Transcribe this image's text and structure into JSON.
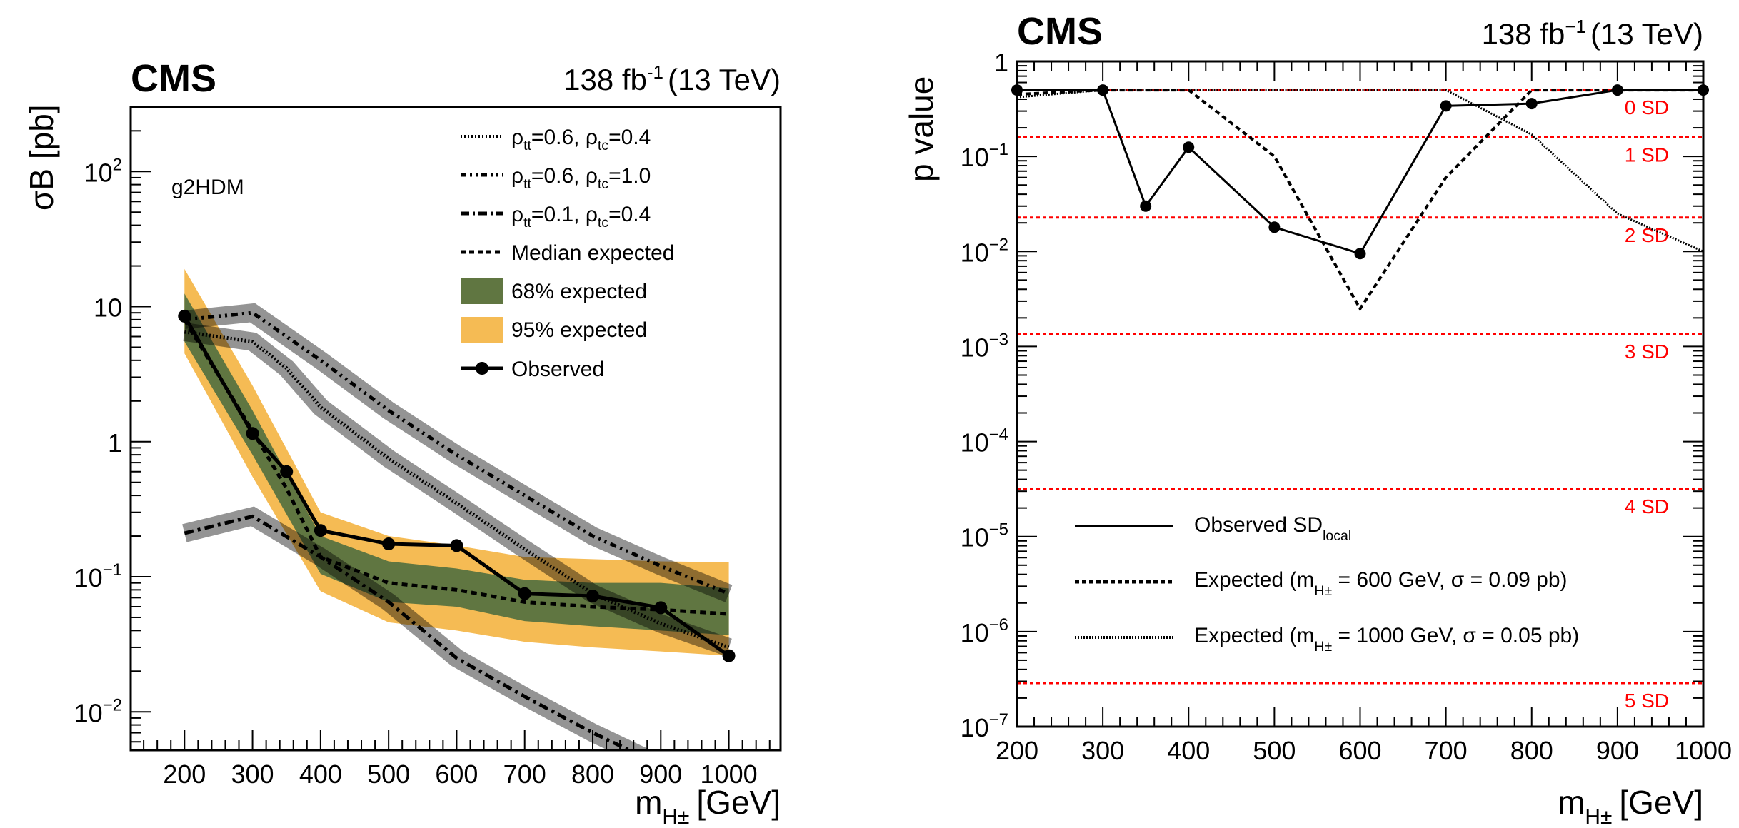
{
  "chart_data": [
    {
      "type": "line",
      "panel": "left",
      "header": {
        "experiment": "CMS",
        "lumi": "138 fb",
        "lumi_exp": "-1",
        "energy": "(13 TeV)"
      },
      "annotation": "g2HDM",
      "xlabel": "m",
      "xlabel_sub": "H±",
      "xlabel_unit": "[GeV]",
      "ylabel": "σB [pb]",
      "yscale": "log",
      "xlim": [
        121,
        1076
      ],
      "ylim": [
        0.0052,
        300
      ],
      "xticks": [
        200,
        300,
        400,
        500,
        600,
        700,
        800,
        900,
        1000
      ],
      "yticks": [
        {
          "value": 100,
          "label": "10",
          "exp": "2"
        },
        {
          "value": 10,
          "label": "10",
          "exp": ""
        },
        {
          "value": 1,
          "label": "1",
          "exp": ""
        },
        {
          "value": 0.1,
          "label": "10",
          "exp": "−1"
        },
        {
          "value": 0.01,
          "label": "10",
          "exp": "−2"
        }
      ],
      "bands": [
        {
          "name": "95% expected",
          "color": "#f5bb54",
          "x": [
            200,
            300,
            400,
            500,
            600,
            700,
            800,
            900,
            1000
          ],
          "low": [
            4.5,
            0.55,
            0.078,
            0.046,
            0.04,
            0.033,
            0.03,
            0.028,
            0.026
          ],
          "high": [
            19,
            2.6,
            0.3,
            0.2,
            0.17,
            0.14,
            0.135,
            0.13,
            0.128
          ]
        },
        {
          "name": "68% expected",
          "color": "#607641",
          "x": [
            200,
            300,
            400,
            500,
            600,
            700,
            800,
            900,
            1000
          ],
          "low": [
            5.5,
            0.8,
            0.105,
            0.065,
            0.06,
            0.047,
            0.043,
            0.04,
            0.037
          ],
          "high": [
            12.5,
            1.7,
            0.2,
            0.13,
            0.115,
            0.095,
            0.09,
            0.09,
            0.082
          ]
        }
      ],
      "series": [
        {
          "name": "ρtt=0.6, ρtc=0.4",
          "legend_main": "ρ",
          "legend_sub1": "tt",
          "legend_mid": "=0.6, ρ",
          "legend_sub2": "tc",
          "legend_end": "=0.4",
          "style": "dotted",
          "grey_band": true,
          "x": [
            200,
            300,
            350,
            400,
            500,
            600,
            700,
            800,
            900,
            1000
          ],
          "y": [
            6.5,
            5.5,
            3.5,
            1.8,
            0.75,
            0.35,
            0.16,
            0.075,
            0.045,
            0.03
          ]
        },
        {
          "name": "ρtt=0.6, ρtc=1.0",
          "legend_main": "ρ",
          "legend_sub1": "tt",
          "legend_mid": "=0.6, ρ",
          "legend_sub2": "tc",
          "legend_end": "=1.0",
          "style": "dashdotdot",
          "grey_band": true,
          "x": [
            200,
            300,
            400,
            500,
            600,
            700,
            800,
            900,
            1000
          ],
          "y": [
            8.0,
            9.0,
            4.0,
            1.7,
            0.8,
            0.4,
            0.2,
            0.12,
            0.075
          ]
        },
        {
          "name": "ρtt=0.1, ρtc=0.4",
          "legend_main": "ρ",
          "legend_sub1": "tt",
          "legend_mid": "=0.1, ρ",
          "legend_sub2": "tc",
          "legend_end": "=0.4",
          "style": "dashdot",
          "grey_band": true,
          "x": [
            200,
            300,
            400,
            500,
            600,
            700,
            800,
            880
          ],
          "y": [
            0.21,
            0.28,
            0.14,
            0.065,
            0.025,
            0.013,
            0.007,
            0.0045
          ]
        },
        {
          "name": "Median expected",
          "style": "dashed",
          "x": [
            200,
            300,
            350,
            400,
            500,
            600,
            700,
            800,
            900,
            1000
          ],
          "y": [
            8.0,
            1.2,
            0.45,
            0.14,
            0.09,
            0.08,
            0.065,
            0.06,
            0.057,
            0.053
          ]
        },
        {
          "name": "Observed",
          "style": "solid-markers",
          "x": [
            200,
            300,
            350,
            400,
            500,
            600,
            700,
            800,
            900,
            1000
          ],
          "y": [
            8.5,
            1.15,
            0.6,
            0.22,
            0.175,
            0.17,
            0.075,
            0.072,
            0.059,
            0.026
          ]
        }
      ],
      "legend": [
        "ρtt=0.6, ρtc=0.4",
        "ρtt=0.6, ρtc=1.0",
        "ρtt=0.1, ρtc=0.4",
        "Median expected",
        "68% expected",
        "95% expected",
        "Observed"
      ],
      "legend_placement": "top-right"
    },
    {
      "type": "line",
      "panel": "right",
      "header": {
        "experiment": "CMS",
        "lumi": "138 fb",
        "lumi_exp": "−1",
        "energy": "(13 TeV)"
      },
      "xlabel": "m",
      "xlabel_sub": "H±",
      "xlabel_unit": "[GeV]",
      "ylabel": "p value",
      "yscale": "log",
      "xlim": [
        200,
        1000
      ],
      "ylim": [
        1e-07,
        1
      ],
      "xticks": [
        200,
        300,
        400,
        500,
        600,
        700,
        800,
        900,
        1000
      ],
      "yticks": [
        {
          "value": 1,
          "label": "1",
          "exp": ""
        },
        {
          "value": 0.1,
          "label": "10",
          "exp": "−1"
        },
        {
          "value": 0.01,
          "label": "10",
          "exp": "−2"
        },
        {
          "value": 0.001,
          "label": "10",
          "exp": "−3"
        },
        {
          "value": 0.0001,
          "label": "10",
          "exp": "−4"
        },
        {
          "value": 1e-05,
          "label": "10",
          "exp": "−5"
        },
        {
          "value": 1e-06,
          "label": "10",
          "exp": "−6"
        },
        {
          "value": 1e-07,
          "label": "10",
          "exp": "−7"
        }
      ],
      "sd_lines": [
        {
          "label": "0 SD",
          "p": 0.5
        },
        {
          "label": "1 SD",
          "p": 0.1587
        },
        {
          "label": "2 SD",
          "p": 0.02275
        },
        {
          "label": "3 SD",
          "p": 0.00135
        },
        {
          "label": "4 SD",
          "p": 3.17e-05
        },
        {
          "label": "5 SD",
          "p": 2.87e-07
        }
      ],
      "sd_color": "#ff0000",
      "series": [
        {
          "name": "Observed SD_local",
          "legend_main": "Observed SD",
          "legend_sub": "local",
          "style": "solid-markers",
          "x": [
            200,
            300,
            350,
            400,
            500,
            600,
            700,
            800,
            900,
            1000
          ],
          "y": [
            0.5,
            0.5,
            0.03,
            0.125,
            0.018,
            0.0095,
            0.34,
            0.36,
            0.5,
            0.5
          ]
        },
        {
          "name": "Expected (mH± = 600 GeV, σ = 0.09 pb)",
          "legend_pre": "Expected (m",
          "legend_sub": "H±",
          "legend_post": " = 600 GeV, σ = 0.09 pb)",
          "style": "dashed",
          "x": [
            200,
            300,
            400,
            500,
            600,
            700,
            800,
            900,
            1000
          ],
          "y": [
            0.45,
            0.5,
            0.5,
            0.1,
            0.0025,
            0.06,
            0.5,
            0.5,
            0.5
          ]
        },
        {
          "name": "Expected (mH± = 1000 GeV, σ = 0.05 pb)",
          "legend_pre": "Expected (m",
          "legend_sub": "H±",
          "legend_post": " = 1000 GeV, σ = 0.05 pb)",
          "style": "dotted",
          "x": [
            200,
            300,
            400,
            500,
            600,
            700,
            800,
            900,
            1000
          ],
          "y": [
            0.42,
            0.5,
            0.5,
            0.5,
            0.5,
            0.5,
            0.17,
            0.025,
            0.01
          ]
        }
      ],
      "legend_placement": "bottom-left"
    }
  ]
}
